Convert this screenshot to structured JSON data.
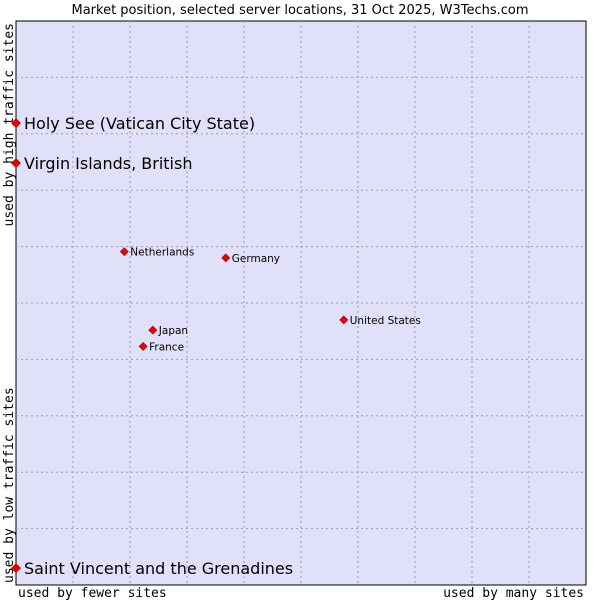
{
  "chart_data": {
    "type": "scatter",
    "title": "Market position, selected server locations, 31 Oct 2025, W3Techs.com",
    "xlabel_low": "used by fewer sites",
    "xlabel_high": "used by many sites",
    "ylabel_low": "used by low traffic sites",
    "ylabel_high": "used by high traffic sites",
    "xlim": [
      0,
      100
    ],
    "ylim": [
      0,
      100
    ],
    "grid": true,
    "points": [
      {
        "name": "Holy See (Vatican City State)",
        "x": 0.0,
        "y": 81.9,
        "size": "large"
      },
      {
        "name": "Virgin Islands, British",
        "x": 0.0,
        "y": 74.8,
        "size": "large"
      },
      {
        "name": "Netherlands",
        "x": 19.0,
        "y": 59.1,
        "size": "small"
      },
      {
        "name": "Germany",
        "x": 36.8,
        "y": 58.0,
        "size": "small"
      },
      {
        "name": "United States",
        "x": 57.5,
        "y": 47.0,
        "size": "small"
      },
      {
        "name": "Japan",
        "x": 24.0,
        "y": 45.2,
        "size": "small"
      },
      {
        "name": "France",
        "x": 22.3,
        "y": 42.3,
        "size": "small"
      },
      {
        "name": "Saint Vincent and the Grenadines",
        "x": 0.0,
        "y": 3.0,
        "size": "large"
      }
    ]
  }
}
